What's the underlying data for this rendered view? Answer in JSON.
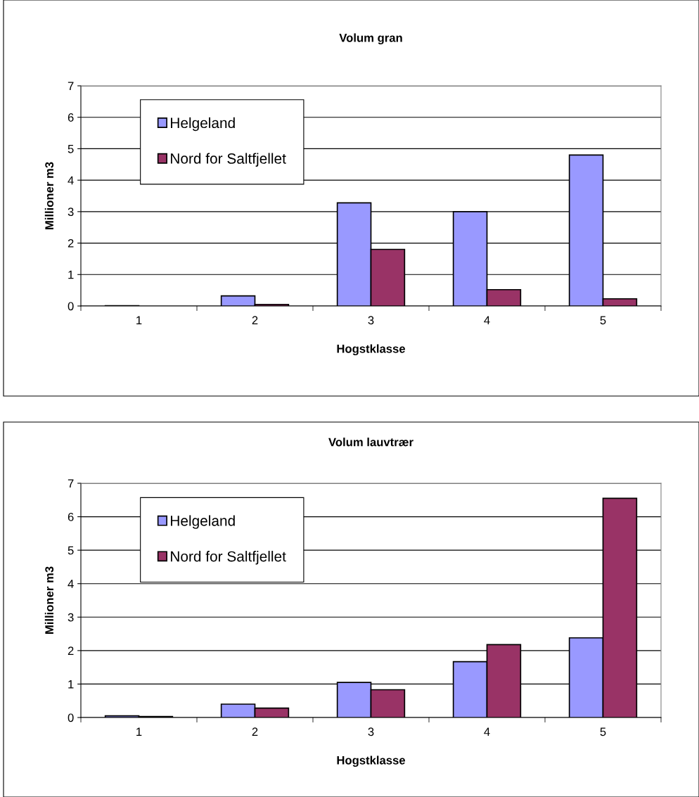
{
  "chart_data": [
    {
      "type": "bar",
      "title": "Volum gran",
      "xlabel": "Hogstklasse",
      "ylabel": "Millioner m3",
      "categories": [
        "1",
        "2",
        "3",
        "4",
        "5"
      ],
      "series": [
        {
          "name": "Helgeland",
          "color": "#9999ff",
          "values": [
            0.01,
            0.32,
            3.28,
            3.0,
            4.8
          ]
        },
        {
          "name": "Nord for Saltfjellet",
          "color": "#993366",
          "values": [
            null,
            0.05,
            1.8,
            0.52,
            0.23
          ]
        }
      ],
      "ylim": [
        0,
        7
      ],
      "yticks": [
        0,
        1,
        2,
        3,
        4,
        5,
        6,
        7
      ],
      "grid": "y",
      "legend": "top left"
    },
    {
      "type": "bar",
      "title": "Volum lauvtrær",
      "xlabel": "Hogstklasse",
      "ylabel": "Millioner m3",
      "categories": [
        "1",
        "2",
        "3",
        "4",
        "5"
      ],
      "series": [
        {
          "name": "Helgeland",
          "color": "#9999ff",
          "values": [
            0.05,
            0.4,
            1.05,
            1.67,
            2.38
          ]
        },
        {
          "name": "Nord for Saltfjellet",
          "color": "#993366",
          "values": [
            0.03,
            0.28,
            0.83,
            2.18,
            6.55
          ]
        }
      ],
      "ylim": [
        0,
        7
      ],
      "yticks": [
        0,
        1,
        2,
        3,
        4,
        5,
        6,
        7
      ],
      "grid": "y",
      "legend": "top left"
    }
  ]
}
